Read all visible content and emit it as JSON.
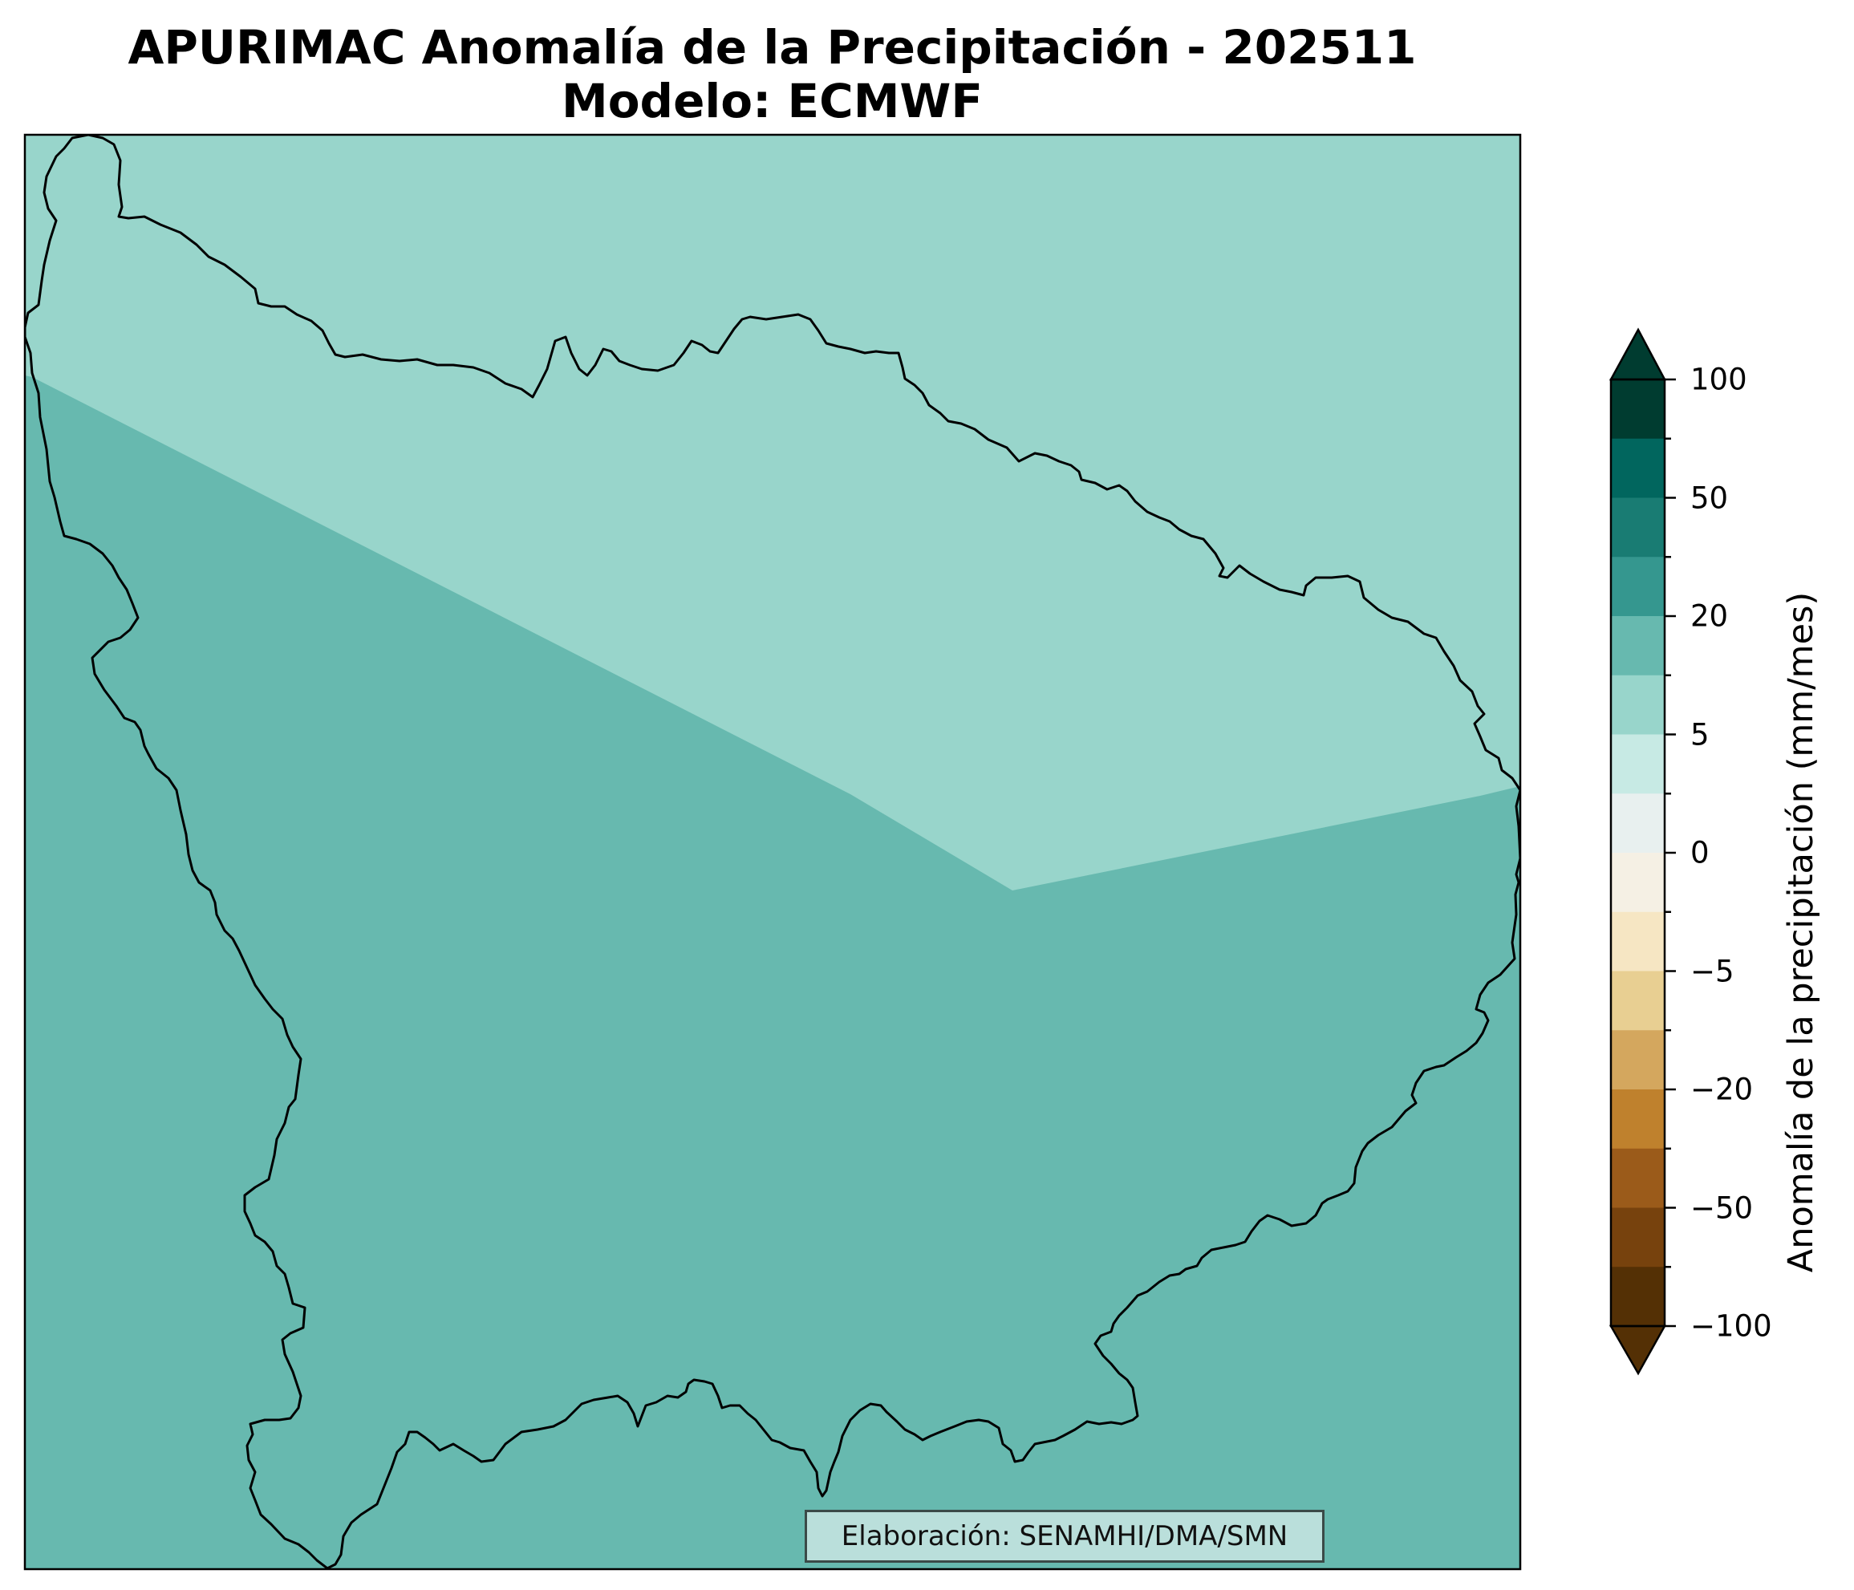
{
  "title": {
    "line1": "APURIMAC Anomalía de la Precipitación - 202511",
    "line2": "Modelo: ECMWF"
  },
  "credit": "Elaboración: SENAMHI/DMA/SMN",
  "colorbar": {
    "label": "Anomalía de la precipitación (mm/mes)",
    "ticks": [
      "100",
      "50",
      "20",
      "5",
      "0",
      "−5",
      "−20",
      "−50",
      "−100"
    ],
    "bands_top_to_bottom": [
      "#003c30",
      "#01665e",
      "#197c73",
      "#35978f",
      "#67b9af",
      "#98d5cb",
      "#c7eae4",
      "#e8f0ef",
      "#f5f0e4",
      "#f6e6c3",
      "#e8cf92",
      "#d4a75e",
      "#bf812d",
      "#9b5b1a",
      "#77420d",
      "#543005"
    ],
    "extend": "both"
  },
  "map": {
    "region": "APURIMAC",
    "fill_colors": {
      "north_zone": "#98d5cb",
      "south_zone": "#67b9af"
    }
  }
}
